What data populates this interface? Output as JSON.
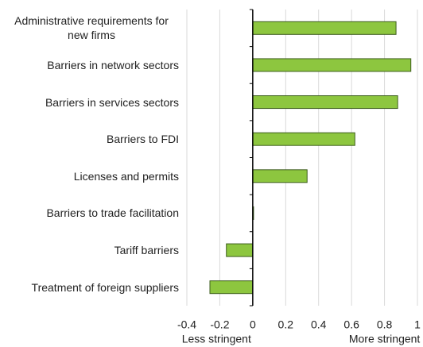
{
  "chart_data": {
    "type": "hbar",
    "categories": [
      "Administrative requirements for new firms",
      "Barriers in network sectors",
      "Barriers in services sectors",
      "Barriers to FDI",
      "Licenses and permits",
      "Barriers to trade facilitation",
      "Tariff barriers",
      "Treatment of foreign suppliers"
    ],
    "values": [
      0.87,
      0.96,
      0.88,
      0.62,
      0.33,
      0.005,
      -0.16,
      -0.26
    ],
    "color": "#8dc63f",
    "xlim": [
      -0.4,
      1
    ],
    "xticks": [
      -0.4,
      -0.2,
      0,
      0.2,
      0.4,
      0.6,
      0.8,
      1
    ],
    "grid": true,
    "annotations": [
      "Less stringent",
      "More stringent"
    ]
  }
}
